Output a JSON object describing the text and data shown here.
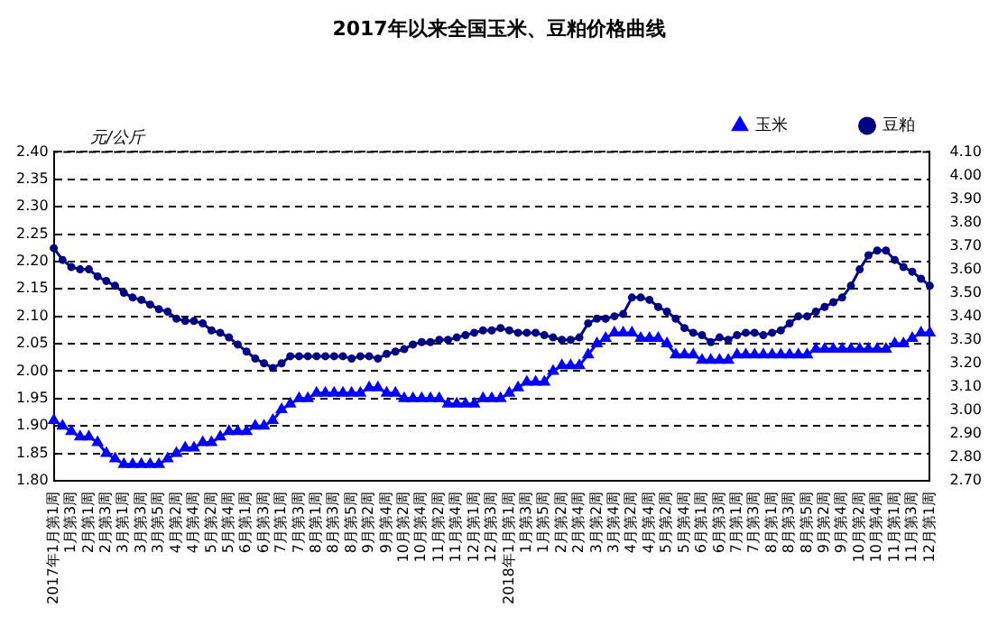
{
  "chart_data": {
    "type": "line",
    "title": "2017年以来全国玉米、豆粕价格曲线",
    "ylabel": "元/公斤",
    "categories": [
      "2017年1月第1周",
      null,
      "1月第3周",
      null,
      "2月第1周",
      null,
      "2月第3周",
      null,
      "3月第1周",
      null,
      "3月第3周",
      null,
      "3月第5周",
      null,
      "4月第2周",
      null,
      "4月第4周",
      null,
      "5月第2周",
      null,
      "5月第4周",
      null,
      "6月第1周",
      null,
      "6月第3周",
      null,
      "7月第1周",
      null,
      "7月第3周",
      null,
      "8月第1周",
      null,
      "8月第3周",
      null,
      "8月第5周",
      null,
      "9月第2周",
      null,
      "9月第4周",
      null,
      "10月第2周",
      null,
      "10月第4周",
      null,
      "11月第2周",
      null,
      "11月第4周",
      null,
      "12月第1周",
      null,
      "12月第3周",
      null,
      "2018年1月第1周",
      null,
      "1月第3周",
      null,
      "1月第5周",
      null,
      "2月第2周",
      null,
      "2月第4周",
      null,
      "3月第2周",
      null,
      "3月第4周",
      null,
      "4月第2周",
      null,
      "4月第4周",
      null,
      "5月第2周",
      null,
      "5月第4周",
      null,
      "6月第1周",
      null,
      "6月第3周",
      null,
      "7月第1周",
      null,
      "7月第3周",
      null,
      "8月第1周",
      null,
      "8月第3周",
      null,
      "8月第5周",
      null,
      "9月第2周",
      null,
      "9月第4周",
      null,
      "10月第2周",
      null,
      "10月第4周",
      null,
      "11月第1周",
      null,
      "11月第3周",
      null,
      "12月第1周"
    ],
    "series": [
      {
        "name": "玉米",
        "color": "#0000ff",
        "marker": "triangle",
        "values": [
          1.91,
          1.9,
          1.89,
          1.88,
          1.88,
          1.87,
          1.85,
          1.84,
          1.83,
          1.83,
          1.83,
          1.83,
          1.83,
          1.84,
          1.85,
          1.86,
          1.86,
          1.87,
          1.87,
          1.88,
          1.89,
          1.89,
          1.89,
          1.9,
          1.9,
          1.91,
          1.93,
          1.94,
          1.95,
          1.95,
          1.96,
          1.96,
          1.96,
          1.96,
          1.96,
          1.96,
          1.97,
          1.97,
          1.96,
          1.96,
          1.95,
          1.95,
          1.95,
          1.95,
          1.95,
          1.94,
          1.94,
          1.94,
          1.94,
          1.95,
          1.95,
          1.95,
          1.96,
          1.97,
          1.98,
          1.98,
          1.98,
          2.0,
          2.01,
          2.01,
          2.01,
          2.03,
          2.05,
          2.06,
          2.07,
          2.07,
          2.07,
          2.06,
          2.06,
          2.06,
          2.05,
          2.03,
          2.03,
          2.03,
          2.02,
          2.02,
          2.02,
          2.02,
          2.03,
          2.03,
          2.03,
          2.03,
          2.03,
          2.03,
          2.03,
          2.03,
          2.03,
          2.04,
          2.04,
          2.04,
          2.04,
          2.04,
          2.04,
          2.04,
          2.04,
          2.04,
          2.05,
          2.05,
          2.06,
          2.07,
          2.07
        ]
      },
      {
        "name": "豆粕",
        "color": "#000080",
        "marker": "circle",
        "axis": "y2",
        "values": [
          3.69,
          3.64,
          3.61,
          3.6,
          3.6,
          3.57,
          3.55,
          3.53,
          3.5,
          3.48,
          3.47,
          3.45,
          3.43,
          3.42,
          3.39,
          3.38,
          3.38,
          3.37,
          3.34,
          3.33,
          3.31,
          3.28,
          3.25,
          3.22,
          3.2,
          3.18,
          3.2,
          3.23,
          3.23,
          3.23,
          3.23,
          3.23,
          3.23,
          3.23,
          3.22,
          3.23,
          3.23,
          3.22,
          3.24,
          3.25,
          3.26,
          3.28,
          3.29,
          3.29,
          3.3,
          3.3,
          3.31,
          3.32,
          3.33,
          3.34,
          3.34,
          3.35,
          3.34,
          3.33,
          3.33,
          3.33,
          3.32,
          3.31,
          3.3,
          3.3,
          3.31,
          3.37,
          3.39,
          3.39,
          3.4,
          3.41,
          3.48,
          3.48,
          3.47,
          3.44,
          3.42,
          3.39,
          3.35,
          3.33,
          3.32,
          3.29,
          3.31,
          3.3,
          3.32,
          3.33,
          3.33,
          3.32,
          3.33,
          3.34,
          3.37,
          3.4,
          3.4,
          3.42,
          3.44,
          3.46,
          3.48,
          3.53,
          3.6,
          3.66,
          3.68,
          3.68,
          3.64,
          3.61,
          3.59,
          3.56,
          3.53
        ]
      }
    ],
    "ylim": [
      1.8,
      2.4
    ],
    "yticks": [
      {
        "value": 1.8,
        "label": "1.80"
      },
      {
        "value": 1.85,
        "label": "1.85"
      },
      {
        "value": 1.9,
        "label": "1.90"
      },
      {
        "value": 1.95,
        "label": "1.95"
      },
      {
        "value": 2.0,
        "label": "2.00"
      },
      {
        "value": 2.05,
        "label": "2.05"
      },
      {
        "value": 2.1,
        "label": "2.10"
      },
      {
        "value": 2.15,
        "label": "2.15"
      },
      {
        "value": 2.2,
        "label": "2.20"
      },
      {
        "value": 2.25,
        "label": "2.25"
      },
      {
        "value": 2.3,
        "label": "2.30"
      },
      {
        "value": 2.35,
        "label": "2.35"
      },
      {
        "value": 2.4,
        "label": "2.40"
      }
    ],
    "y2lim": [
      2.7,
      4.1
    ],
    "y2ticks": [
      {
        "value": 2.7,
        "label": "2.70"
      },
      {
        "value": 2.8,
        "label": "2.80"
      },
      {
        "value": 2.9,
        "label": "2.90"
      },
      {
        "value": 3.0,
        "label": "3.00"
      },
      {
        "value": 3.1,
        "label": "3.10"
      },
      {
        "value": 3.2,
        "label": "3.20"
      },
      {
        "value": 3.3,
        "label": "3.30"
      },
      {
        "value": 3.4,
        "label": "3.40"
      },
      {
        "value": 3.5,
        "label": "3.50"
      },
      {
        "value": 3.6,
        "label": "3.60"
      },
      {
        "value": 3.7,
        "label": "3.70"
      },
      {
        "value": 3.8,
        "label": "3.80"
      },
      {
        "value": 3.9,
        "label": "3.90"
      },
      {
        "value": 4.0,
        "label": "4.00"
      },
      {
        "value": 4.1,
        "label": "4.10"
      }
    ],
    "grid": "y",
    "legend": "top right"
  }
}
